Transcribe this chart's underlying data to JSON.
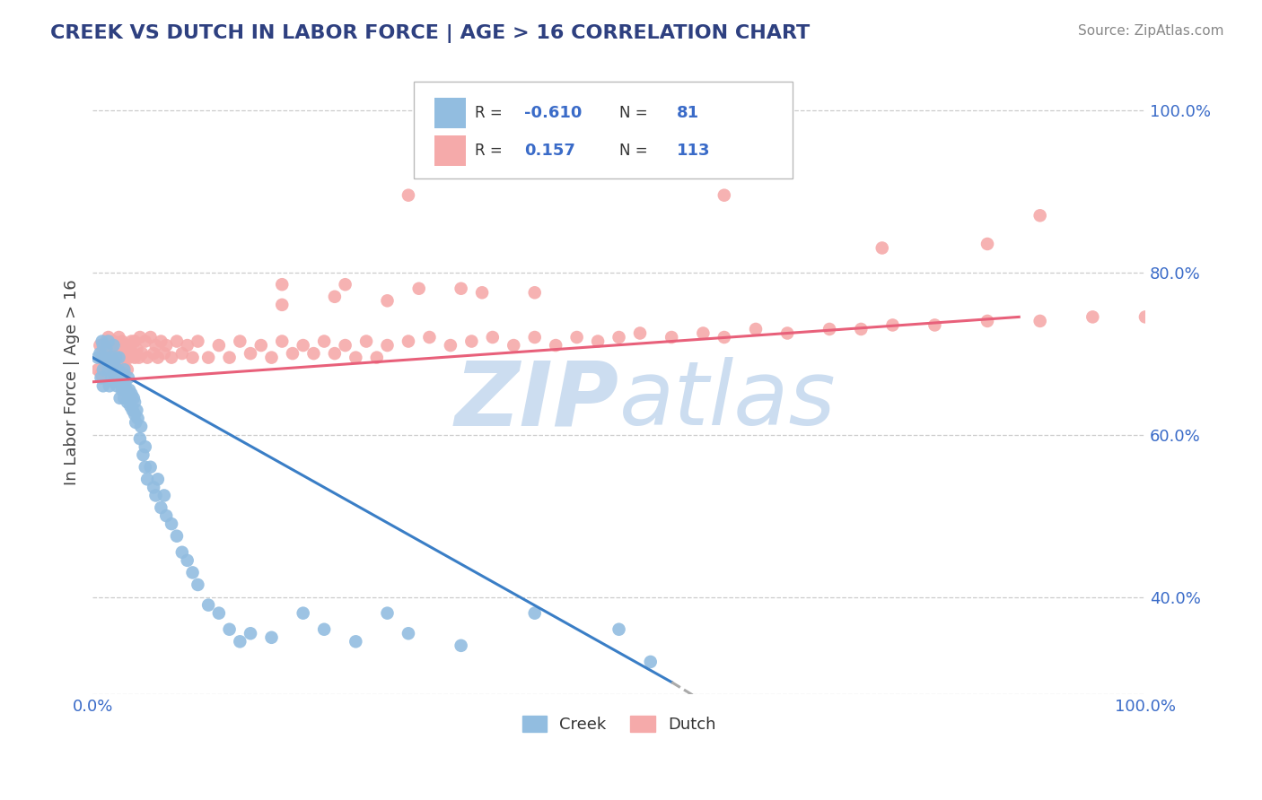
{
  "title": "CREEK VS DUTCH IN LABOR FORCE | AGE > 16 CORRELATION CHART",
  "source_text": "Source: ZipAtlas.com",
  "ylabel": "In Labor Force | Age > 16",
  "xlim": [
    0.0,
    1.0
  ],
  "ylim": [
    0.28,
    1.05
  ],
  "yticks": [
    0.4,
    0.6,
    0.8,
    1.0
  ],
  "ytick_labels": [
    "40.0%",
    "60.0%",
    "80.0%",
    "100.0%"
  ],
  "xtick_positions": [
    0.0,
    1.0
  ],
  "xtick_labels": [
    "0.0%",
    "100.0%"
  ],
  "creek_color": "#92BDE0",
  "dutch_color": "#F5AAAA",
  "creek_line_color": "#3A7EC6",
  "dutch_line_color": "#E8607A",
  "background_color": "#FFFFFF",
  "grid_color": "#CCCCCC",
  "title_color": "#2E4080",
  "watermark_color": "#CCDDF0",
  "creek_trend": [
    0.0,
    0.55,
    0.695,
    0.295
  ],
  "creek_trend_dashed": [
    0.55,
    0.72,
    0.295,
    0.16
  ],
  "dutch_trend": [
    0.0,
    0.88,
    0.665,
    0.745
  ],
  "creek_scatter_x": [
    0.005,
    0.007,
    0.008,
    0.009,
    0.01,
    0.01,
    0.01,
    0.012,
    0.013,
    0.014,
    0.015,
    0.015,
    0.016,
    0.017,
    0.018,
    0.019,
    0.02,
    0.02,
    0.02,
    0.021,
    0.022,
    0.023,
    0.024,
    0.025,
    0.025,
    0.026,
    0.027,
    0.028,
    0.029,
    0.03,
    0.03,
    0.03,
    0.031,
    0.032,
    0.033,
    0.034,
    0.035,
    0.035,
    0.036,
    0.037,
    0.038,
    0.039,
    0.04,
    0.04,
    0.041,
    0.042,
    0.043,
    0.045,
    0.046,
    0.048,
    0.05,
    0.05,
    0.052,
    0.055,
    0.058,
    0.06,
    0.062,
    0.065,
    0.068,
    0.07,
    0.075,
    0.08,
    0.085,
    0.09,
    0.095,
    0.1,
    0.11,
    0.12,
    0.13,
    0.14,
    0.15,
    0.17,
    0.2,
    0.22,
    0.25,
    0.28,
    0.3,
    0.35,
    0.42,
    0.5,
    0.53
  ],
  "creek_scatter_y": [
    0.695,
    0.7,
    0.67,
    0.715,
    0.68,
    0.71,
    0.66,
    0.695,
    0.705,
    0.69,
    0.68,
    0.715,
    0.66,
    0.695,
    0.67,
    0.685,
    0.71,
    0.665,
    0.69,
    0.675,
    0.695,
    0.66,
    0.68,
    0.665,
    0.695,
    0.645,
    0.67,
    0.655,
    0.675,
    0.66,
    0.68,
    0.645,
    0.665,
    0.655,
    0.64,
    0.67,
    0.645,
    0.655,
    0.635,
    0.65,
    0.63,
    0.645,
    0.625,
    0.64,
    0.615,
    0.63,
    0.62,
    0.595,
    0.61,
    0.575,
    0.56,
    0.585,
    0.545,
    0.56,
    0.535,
    0.525,
    0.545,
    0.51,
    0.525,
    0.5,
    0.49,
    0.475,
    0.455,
    0.445,
    0.43,
    0.415,
    0.39,
    0.38,
    0.36,
    0.345,
    0.355,
    0.35,
    0.38,
    0.36,
    0.345,
    0.38,
    0.355,
    0.34,
    0.38,
    0.36,
    0.32
  ],
  "dutch_scatter_x": [
    0.005,
    0.007,
    0.008,
    0.009,
    0.01,
    0.01,
    0.012,
    0.013,
    0.015,
    0.015,
    0.016,
    0.018,
    0.019,
    0.02,
    0.02,
    0.021,
    0.022,
    0.023,
    0.025,
    0.025,
    0.027,
    0.028,
    0.03,
    0.03,
    0.031,
    0.032,
    0.033,
    0.035,
    0.036,
    0.037,
    0.038,
    0.04,
    0.04,
    0.042,
    0.044,
    0.045,
    0.047,
    0.05,
    0.052,
    0.055,
    0.058,
    0.06,
    0.062,
    0.065,
    0.068,
    0.07,
    0.075,
    0.08,
    0.085,
    0.09,
    0.095,
    0.1,
    0.11,
    0.12,
    0.13,
    0.14,
    0.15,
    0.16,
    0.17,
    0.18,
    0.19,
    0.2,
    0.21,
    0.22,
    0.23,
    0.24,
    0.25,
    0.26,
    0.27,
    0.28,
    0.3,
    0.32,
    0.34,
    0.36,
    0.38,
    0.4,
    0.42,
    0.44,
    0.46,
    0.48,
    0.5,
    0.52,
    0.55,
    0.58,
    0.6,
    0.63,
    0.66,
    0.7,
    0.73,
    0.76,
    0.8,
    0.85,
    0.9,
    0.95,
    1.0,
    0.3,
    0.6,
    0.75,
    0.85,
    0.9,
    0.37,
    0.42,
    0.28,
    0.18,
    0.23,
    0.31,
    0.18,
    0.24,
    0.35
  ],
  "dutch_scatter_y": [
    0.68,
    0.71,
    0.675,
    0.695,
    0.67,
    0.7,
    0.685,
    0.715,
    0.69,
    0.72,
    0.675,
    0.695,
    0.705,
    0.68,
    0.715,
    0.69,
    0.7,
    0.685,
    0.695,
    0.72,
    0.7,
    0.715,
    0.685,
    0.7,
    0.695,
    0.71,
    0.68,
    0.695,
    0.705,
    0.715,
    0.7,
    0.695,
    0.715,
    0.705,
    0.695,
    0.72,
    0.7,
    0.715,
    0.695,
    0.72,
    0.7,
    0.71,
    0.695,
    0.715,
    0.7,
    0.71,
    0.695,
    0.715,
    0.7,
    0.71,
    0.695,
    0.715,
    0.695,
    0.71,
    0.695,
    0.715,
    0.7,
    0.71,
    0.695,
    0.715,
    0.7,
    0.71,
    0.7,
    0.715,
    0.7,
    0.71,
    0.695,
    0.715,
    0.695,
    0.71,
    0.715,
    0.72,
    0.71,
    0.715,
    0.72,
    0.71,
    0.72,
    0.71,
    0.72,
    0.715,
    0.72,
    0.725,
    0.72,
    0.725,
    0.72,
    0.73,
    0.725,
    0.73,
    0.73,
    0.735,
    0.735,
    0.74,
    0.74,
    0.745,
    0.745,
    0.895,
    0.895,
    0.83,
    0.835,
    0.87,
    0.775,
    0.775,
    0.765,
    0.76,
    0.77,
    0.78,
    0.785,
    0.785,
    0.78
  ]
}
